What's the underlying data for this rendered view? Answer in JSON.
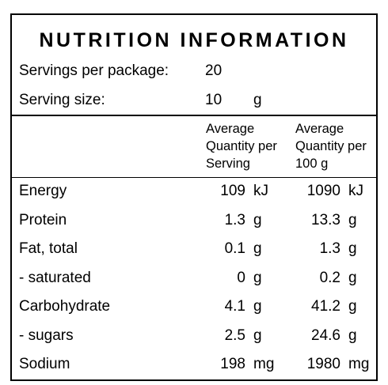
{
  "title": "NUTRITION INFORMATION",
  "servings": {
    "label": "Servings per package:",
    "value": "20"
  },
  "serving_size": {
    "label": "Serving size:",
    "value": "10",
    "unit": "g"
  },
  "columns": {
    "per_serving": [
      "Average",
      "Quantity per",
      "Serving"
    ],
    "per_100g": [
      "Average",
      "Quantity per",
      "100 g"
    ]
  },
  "rows": [
    {
      "name": "Energy",
      "per_serving": "109",
      "per_serving_unit": "kJ",
      "per_100g": "1090",
      "per_100g_unit": "kJ"
    },
    {
      "name": "Protein",
      "per_serving": "1.3",
      "per_serving_unit": "g",
      "per_100g": "13.3",
      "per_100g_unit": "g"
    },
    {
      "name": "Fat, total",
      "per_serving": "0.1",
      "per_serving_unit": "g",
      "per_100g": "1.3",
      "per_100g_unit": "g"
    },
    {
      "name": "- saturated",
      "per_serving": "0",
      "per_serving_unit": "g",
      "per_100g": "0.2",
      "per_100g_unit": "g"
    },
    {
      "name": "Carbohydrate",
      "per_serving": "4.1",
      "per_serving_unit": "g",
      "per_100g": "41.2",
      "per_100g_unit": "g"
    },
    {
      "name": "- sugars",
      "per_serving": "2.5",
      "per_serving_unit": "g",
      "per_100g": "24.6",
      "per_100g_unit": "g"
    },
    {
      "name": "Sodium",
      "per_serving": "198",
      "per_serving_unit": "mg",
      "per_100g": "1980",
      "per_100g_unit": "mg"
    }
  ]
}
